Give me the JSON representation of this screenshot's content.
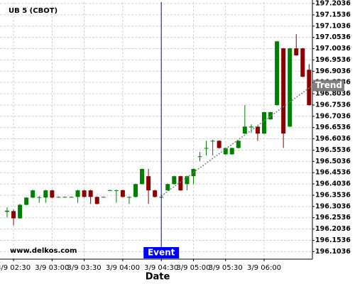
{
  "chart_data": {
    "type": "candlestick",
    "title": "UB 5 (CBOT)",
    "watermark": "www.delkos.com",
    "x_label": "Date",
    "categories": [
      null,
      "3/9 02:30",
      null,
      null,
      null,
      null,
      null,
      "3/9 03:00",
      null,
      null,
      null,
      null,
      "3/9 03:30",
      null,
      null,
      null,
      null,
      null,
      "3/9 04:00",
      null,
      null,
      null,
      null,
      null,
      "3/9 04:30",
      null,
      null,
      null,
      null,
      "3/9 05:00",
      null,
      null,
      null,
      null,
      "3/9 05:30",
      null,
      null,
      null,
      null,
      null,
      "3/9 06:00",
      null,
      null,
      null,
      null,
      null,
      null,
      null
    ],
    "open": [
      196.28,
      196.283,
      196.251,
      196.311,
      196.343,
      196.345,
      196.343,
      196.375,
      196.346,
      196.346,
      196.346,
      196.346,
      196.375,
      196.375,
      196.346,
      196.346,
      196.376,
      196.376,
      196.376,
      196.346,
      196.346,
      196.403,
      196.438,
      196.375,
      196.346,
      196.375,
      196.403,
      196.438,
      196.403,
      196.438,
      196.526,
      196.563,
      196.595,
      196.595,
      196.535,
      196.535,
      196.563,
      196.627,
      196.658,
      196.658,
      196.627,
      196.69,
      196.753,
      197.005,
      196.658,
      197.005,
      197.005,
      196.91
    ],
    "high": [
      196.3,
      196.29,
      196.315,
      196.345,
      196.378,
      196.35,
      196.378,
      196.378,
      196.348,
      196.348,
      196.348,
      196.378,
      196.378,
      196.378,
      196.348,
      196.348,
      196.378,
      196.378,
      196.378,
      196.348,
      196.405,
      196.472,
      196.47,
      196.378,
      196.348,
      196.405,
      196.44,
      196.44,
      196.44,
      196.472,
      196.545,
      196.595,
      196.6,
      196.597,
      196.565,
      196.565,
      196.597,
      196.753,
      196.668,
      196.66,
      196.724,
      196.724,
      197.038,
      197.007,
      197.007,
      197.068,
      197.007,
      196.935
    ],
    "low": [
      196.255,
      196.22,
      196.249,
      196.309,
      196.341,
      196.32,
      196.32,
      196.341,
      196.344,
      196.344,
      196.344,
      196.32,
      196.344,
      196.315,
      196.313,
      196.344,
      196.374,
      196.32,
      196.344,
      196.315,
      196.344,
      196.401,
      196.315,
      196.344,
      196.34,
      196.373,
      196.401,
      196.373,
      196.375,
      196.403,
      196.505,
      196.53,
      196.53,
      196.561,
      196.533,
      196.533,
      196.561,
      196.625,
      196.63,
      196.595,
      196.625,
      196.688,
      196.751,
      196.563,
      196.656,
      196.972,
      196.877,
      196.751
    ],
    "close": [
      196.285,
      196.251,
      196.311,
      196.343,
      196.375,
      196.345,
      196.375,
      196.343,
      196.346,
      196.346,
      196.346,
      196.375,
      196.346,
      196.346,
      196.315,
      196.346,
      196.376,
      196.376,
      196.346,
      196.346,
      196.403,
      196.47,
      196.375,
      196.346,
      196.346,
      196.403,
      196.438,
      196.375,
      196.438,
      196.47,
      196.526,
      196.563,
      196.595,
      196.563,
      196.563,
      196.563,
      196.595,
      196.658,
      196.658,
      196.627,
      196.722,
      196.722,
      197.036,
      196.627,
      197.005,
      196.974,
      196.879,
      196.753
    ],
    "up_color": "#008000",
    "down_color": "#8b0000",
    "ylim": [
      196.07,
      197.21
    ],
    "yticks": [
      196.1036,
      196.1536,
      196.2036,
      196.2536,
      196.3036,
      196.3536,
      196.4036,
      196.4536,
      196.5036,
      196.5536,
      196.6036,
      196.6536,
      196.7036,
      196.7536,
      196.8036,
      196.8536,
      196.9036,
      196.9536,
      197.0036,
      197.0536,
      197.1036,
      197.1536,
      197.2036
    ],
    "grid": true,
    "event": {
      "label": "Event",
      "color": "#0000ff"
    },
    "trend": {
      "label": "Trend",
      "start": 196.35,
      "end": 196.84,
      "color": "#808080"
    }
  }
}
